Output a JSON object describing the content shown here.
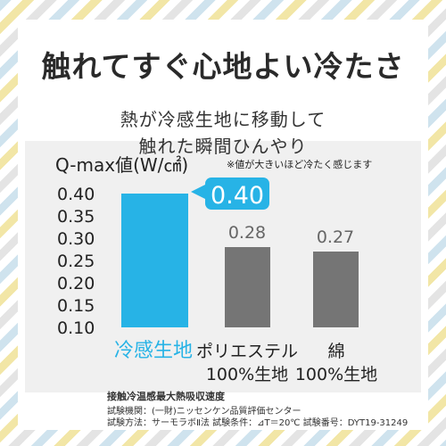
{
  "headline": "触れてすぐ心地よい冷たさ",
  "subtitle_lines": [
    "熱が冷感生地に移動して",
    "触れた瞬間ひんやり"
  ],
  "chart_data": {
    "type": "bar",
    "title": "Q-max値(W/㎠)",
    "note": "※値が大きいほど冷たく感じます",
    "y_ticks": [
      "0.40",
      "0.35",
      "0.30",
      "0.25",
      "0.20",
      "0.15",
      "0.10"
    ],
    "ylim": [
      0.1,
      0.4
    ],
    "categories": [
      {
        "line1": "冷感生地",
        "line2": ""
      },
      {
        "line1": "ポリエステル",
        "line2": "100%生地"
      },
      {
        "line1": "綿",
        "line2": "100%生地"
      }
    ],
    "values": [
      0.4,
      0.28,
      0.27
    ],
    "data_labels": [
      "0.40",
      "0.28",
      "0.27"
    ],
    "colors": {
      "highlight": "#27b3e6",
      "other": "#757575"
    }
  },
  "footnote": {
    "title": "接触冷温感最大熱吸収速度",
    "line1": "試験機関：(一財)ニッセンケン品質評価センター",
    "line2": "試験方法：サーモラボⅡ法 試験条件：⊿T＝20℃ 試験番号：DYT19-31249"
  }
}
